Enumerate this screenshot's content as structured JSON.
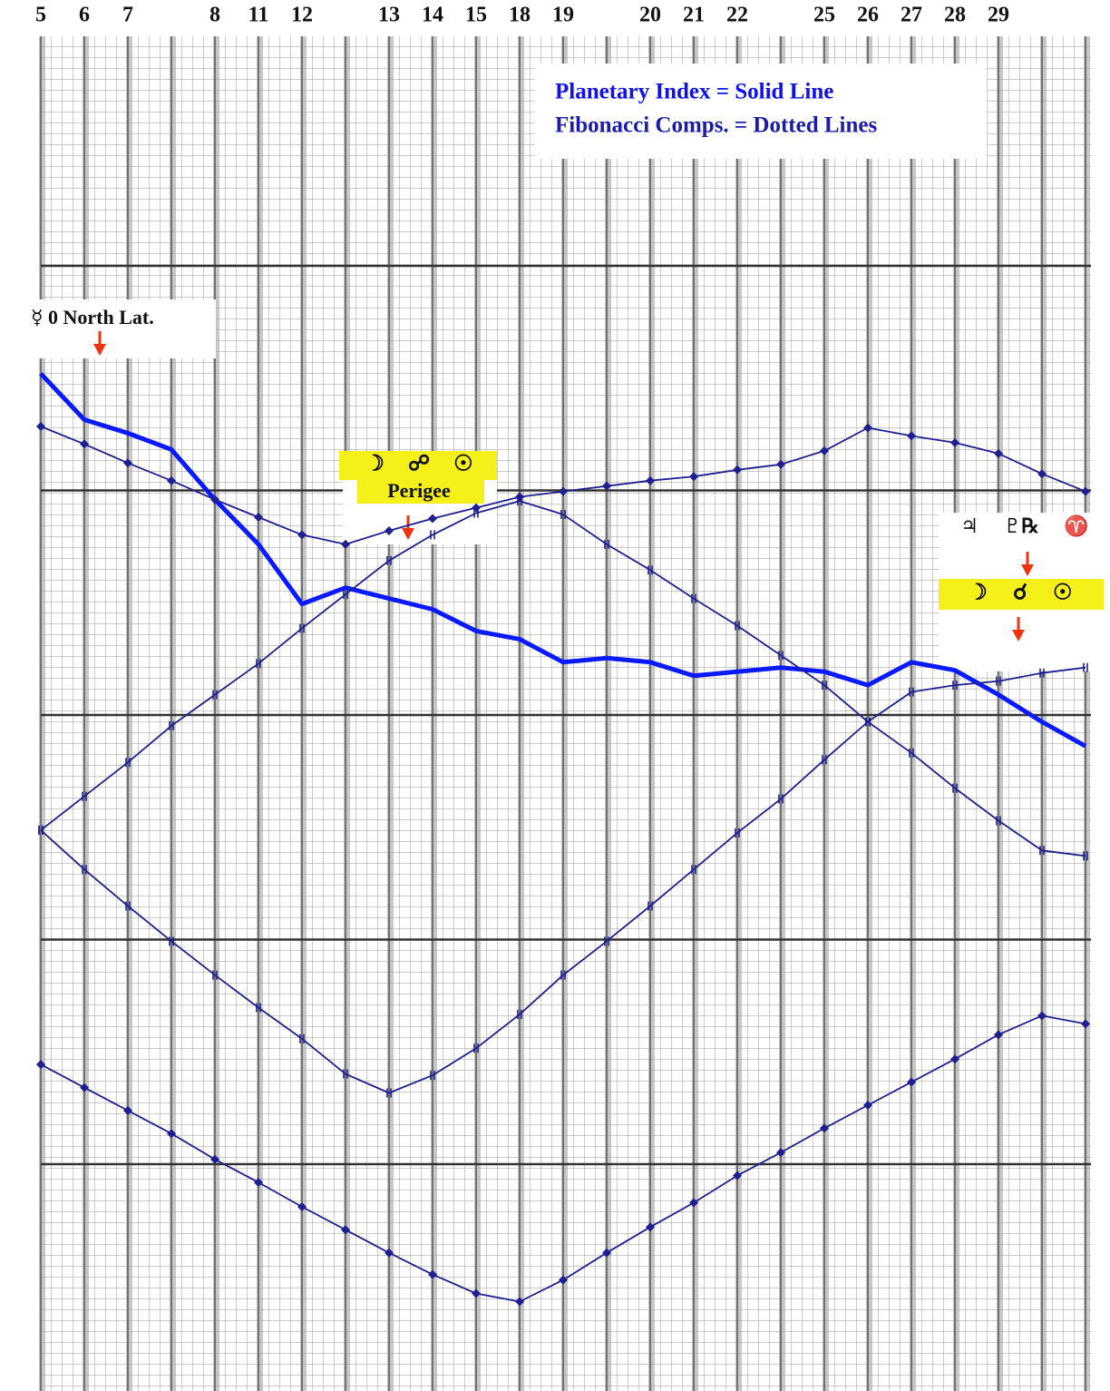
{
  "chart_data": {
    "type": "line",
    "categories": [
      "5",
      "6",
      "7",
      null,
      "8",
      "11",
      "12",
      null,
      "13",
      "14",
      "15",
      "18",
      "19",
      null,
      "20",
      "21",
      "22",
      null,
      "25",
      "26",
      "27",
      "28",
      "29",
      null,
      null
    ],
    "series": [
      {
        "color": "#0a1aff",
        "style": "solid",
        "values": [
          75.1,
          71.7,
          70.7,
          69.5,
          65.8,
          62.5,
          58.1,
          59.3,
          58.5,
          57.7,
          56.1,
          55.5,
          53.8,
          54.1,
          53.8,
          52.8,
          53.1,
          53.4,
          53.1,
          52.1,
          53.8,
          53.2,
          51.4,
          49.4,
          47.6
        ]
      },
      {
        "color": "#1f1f8f",
        "style": "dotted",
        "marker": "diamond",
        "values": [
          71.2,
          69.9,
          68.5,
          67.2,
          65.8,
          64.5,
          63.2,
          62.5,
          63.5,
          64.4,
          65.2,
          66.0,
          66.4,
          66.8,
          67.2,
          67.5,
          68.0,
          68.4,
          69.4,
          71.1,
          70.5,
          70.0,
          69.2,
          67.7,
          66.4
        ]
      },
      {
        "color": "#1f1f8f",
        "style": "dotted",
        "marker": "tick",
        "values": [
          41.4,
          43.9,
          46.4,
          49.1,
          51.4,
          53.7,
          56.3,
          58.8,
          61.3,
          63.2,
          64.8,
          65.7,
          64.7,
          62.5,
          60.6,
          58.5,
          56.5,
          54.3,
          52.1,
          49.4,
          47.1,
          44.5,
          42.1,
          39.9,
          39.5
        ]
      },
      {
        "color": "#1f1f8f",
        "style": "dotted",
        "marker": "tick",
        "values": [
          41.4,
          38.5,
          35.8,
          33.2,
          30.7,
          28.3,
          26.0,
          23.4,
          22.0,
          23.3,
          25.3,
          27.8,
          30.7,
          33.2,
          35.8,
          38.5,
          41.2,
          43.7,
          46.6,
          49.4,
          51.6,
          52.1,
          52.4,
          53.0,
          53.4
        ]
      },
      {
        "color": "#1f1f8f",
        "style": "dotted",
        "marker": "diamond",
        "values": [
          24.1,
          22.4,
          20.7,
          19.0,
          17.1,
          15.4,
          13.6,
          11.9,
          10.2,
          8.6,
          7.2,
          6.6,
          8.2,
          10.2,
          12.1,
          13.9,
          15.9,
          17.6,
          19.4,
          21.1,
          22.8,
          24.5,
          26.3,
          27.7,
          27.1
        ]
      }
    ],
    "ylim": [
      0,
      100
    ],
    "grid": true,
    "legend": [
      "Planetary Index = Solid Line",
      "Fibonacci Comps. = Dotted Lines"
    ],
    "annotations": [
      "☿ 0 North Lat.",
      "☽ ☍ ☉",
      "Perigee",
      "♃ ♇℞ ♈",
      "☽ ☌ ☉"
    ]
  }
}
